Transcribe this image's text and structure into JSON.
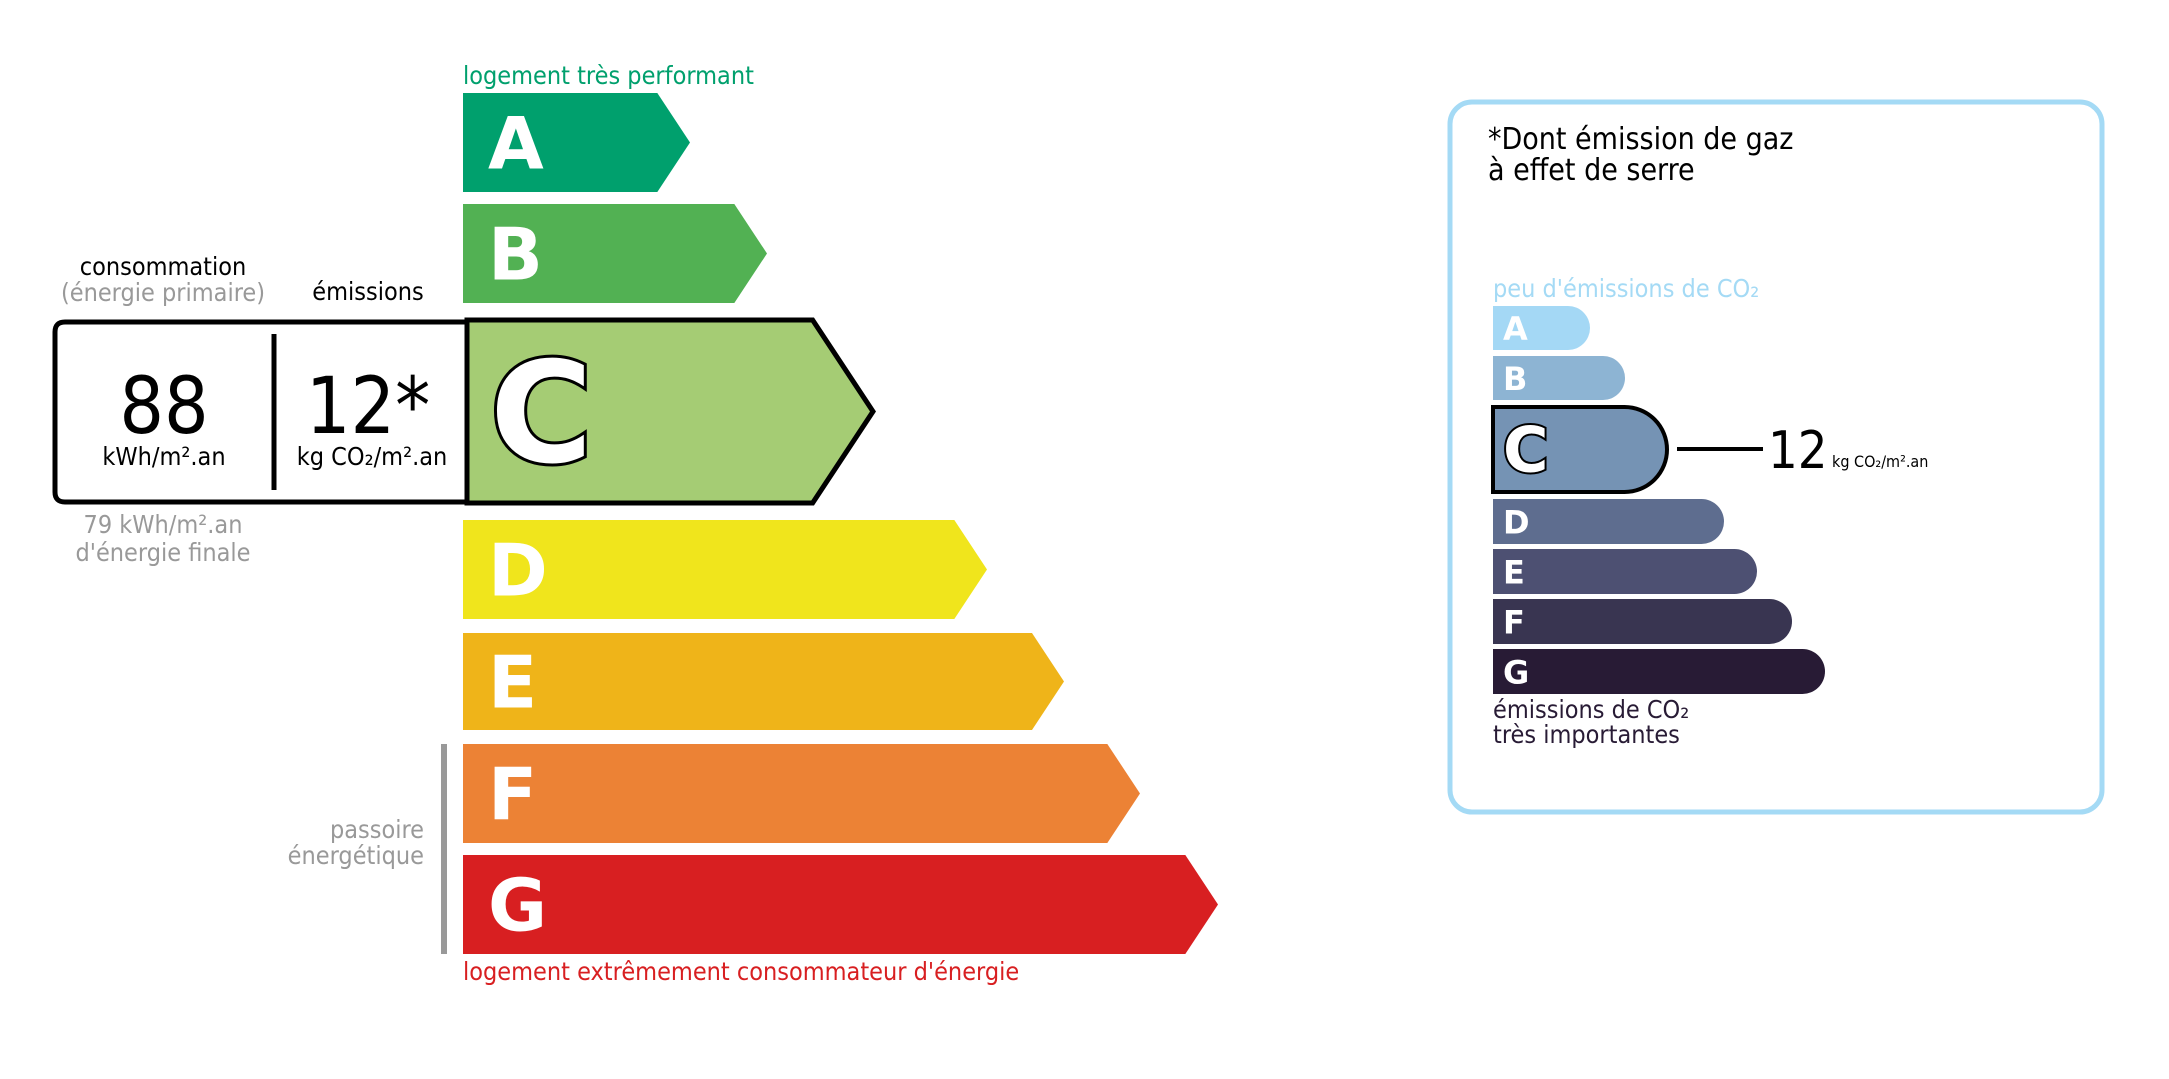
{
  "energy": {
    "top_label": "logement très performant",
    "bottom_label": "logement extrêmement consommateur d'énergie",
    "top_label_color": "#00a06d",
    "bottom_label_color": "#d81f21",
    "classes": [
      {
        "letter": "A",
        "color": "#00a06d"
      },
      {
        "letter": "B",
        "color": "#52b153"
      },
      {
        "letter": "C",
        "color": "#a5cc74"
      },
      {
        "letter": "D",
        "color": "#f0e51c"
      },
      {
        "letter": "E",
        "color": "#efb419"
      },
      {
        "letter": "F",
        "color": "#ec8235"
      },
      {
        "letter": "G",
        "color": "#d81f21"
      }
    ],
    "current_class": "C",
    "consumption_title": "consommation",
    "consumption_subtitle": "(énergie primaire)",
    "emissions_title": "émissions",
    "consumption_value": "88",
    "consumption_unit": "kWh/m².an",
    "emissions_value": "12*",
    "emissions_unit": "kg CO₂/m².an",
    "final_energy_value": "79 kWh/m².an",
    "final_energy_label": "d'énergie finale",
    "passoire_line1": "passoire",
    "passoire_line2": "énergétique"
  },
  "ges": {
    "title_line1": "*Dont émission de gaz",
    "title_line2": "à effet de serre",
    "top_label": "peu d'émissions de CO₂",
    "bottom_label_line1": "émissions de CO₂",
    "bottom_label_line2": "très importantes",
    "border_color": "#a4daf5",
    "classes": [
      {
        "letter": "A",
        "color": "#a4d8f5"
      },
      {
        "letter": "B",
        "color": "#8db4d3"
      },
      {
        "letter": "C",
        "color": "#7593b4"
      },
      {
        "letter": "D",
        "color": "#5e6d8f"
      },
      {
        "letter": "E",
        "color": "#4d5072"
      },
      {
        "letter": "F",
        "color": "#393551"
      },
      {
        "letter": "G",
        "color": "#281b35"
      }
    ],
    "current_class": "C",
    "value": "12",
    "unit": "kg CO₂/m².an"
  }
}
